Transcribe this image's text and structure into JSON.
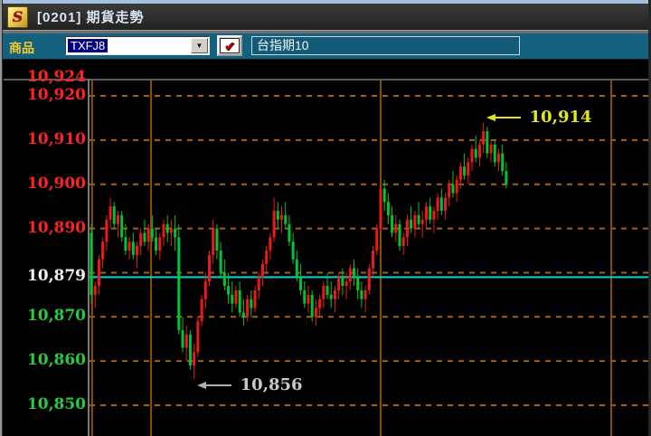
{
  "window": {
    "icon_glyph": "S",
    "title": "[0201] 期貨走勢"
  },
  "toolbar": {
    "product_label": "商品",
    "product_code": "TXFJ8",
    "dropdown_arrow": "▼",
    "checkmark": "✔",
    "product_name": "台指期10"
  },
  "colors": {
    "candle_up": "#f01818",
    "candle_down": "#00c430",
    "grid": "#a86212",
    "vline": "#8a5208",
    "plot_border": "#5d5d5d",
    "reference_line": "#00d8d8",
    "label_up": "#ff2222",
    "label_down": "#22cc44",
    "label_reference": "#f0f0f0",
    "annotation_high": "#e6e61c",
    "annotation_low": "#c9c9c9",
    "annotation_low_arrow": "#b0b0b0"
  },
  "chart_data": {
    "type": "candlestick",
    "title": "期貨走勢",
    "instrument": "TXFJ8",
    "instrument_name": "台指期10",
    "reference_price": 10879,
    "session_high": 10914,
    "session_low": 10856,
    "ylim": [
      10843,
      10924
    ],
    "grid": true,
    "y_ticks": [
      {
        "label": "10,924",
        "price": 10924,
        "role": "up"
      },
      {
        "label": "10,920",
        "price": 10920,
        "role": "up"
      },
      {
        "label": "10,910",
        "price": 10910,
        "role": "up"
      },
      {
        "label": "10,900",
        "price": 10900,
        "role": "up"
      },
      {
        "label": "10,890",
        "price": 10890,
        "role": "up"
      },
      {
        "label": "10,879",
        "price": 10879,
        "role": "reference"
      },
      {
        "label": "10,870",
        "price": 10870,
        "role": "down"
      },
      {
        "label": "10,860",
        "price": 10860,
        "role": "down"
      },
      {
        "label": "10,850",
        "price": 10850,
        "role": "down"
      }
    ],
    "h_gridline_prices": [
      10920,
      10910,
      10900,
      10890,
      10880,
      10870,
      10860,
      10850
    ],
    "v_gridline_minutes": [
      0.2,
      15.7,
      76.0,
      136.6
    ],
    "annotations": [
      {
        "label": "10,914",
        "price": 10914,
        "candle_index": 103,
        "position": "high"
      },
      {
        "label": "10,856",
        "price": 10856,
        "candle_index": 27,
        "position": "low"
      }
    ],
    "candles": [
      [
        10889,
        10891,
        10873,
        10875
      ],
      [
        10875,
        10878,
        10872,
        10877
      ],
      [
        10877,
        10884,
        10875,
        10883
      ],
      [
        10883,
        10888,
        10881,
        10887
      ],
      [
        10887,
        10893,
        10885,
        10892
      ],
      [
        10892,
        10897,
        10890,
        10895
      ],
      [
        10895,
        10896,
        10890,
        10891
      ],
      [
        10891,
        10894,
        10888,
        10893
      ],
      [
        10893,
        10894,
        10887,
        10888
      ],
      [
        10888,
        10891,
        10884,
        10885
      ],
      [
        10885,
        10888,
        10883,
        10887
      ],
      [
        10887,
        10889,
        10883,
        10884
      ],
      [
        10884,
        10887,
        10881,
        10886
      ],
      [
        10886,
        10890,
        10884,
        10889
      ],
      [
        10889,
        10892,
        10886,
        10887
      ],
      [
        10887,
        10891,
        10885,
        10890
      ],
      [
        10890,
        10893,
        10887,
        10888
      ],
      [
        10888,
        10890,
        10884,
        10885
      ],
      [
        10885,
        10889,
        10883,
        10888
      ],
      [
        10888,
        10892,
        10886,
        10891
      ],
      [
        10891,
        10893,
        10887,
        10889
      ],
      [
        10889,
        10892,
        10886,
        10890
      ],
      [
        10890,
        10893,
        10885,
        10888
      ],
      [
        10888,
        10891,
        10866,
        10867
      ],
      [
        10867,
        10870,
        10862,
        10863
      ],
      [
        10863,
        10868,
        10860,
        10866
      ],
      [
        10866,
        10867,
        10858,
        10859
      ],
      [
        10859,
        10864,
        10856,
        10862
      ],
      [
        10862,
        10870,
        10861,
        10869
      ],
      [
        10869,
        10875,
        10868,
        10874
      ],
      [
        10874,
        10880,
        10872,
        10878
      ],
      [
        10878,
        10885,
        10877,
        10884
      ],
      [
        10884,
        10892,
        10882,
        10890
      ],
      [
        10890,
        10891,
        10883,
        10885
      ],
      [
        10885,
        10887,
        10879,
        10880
      ],
      [
        10880,
        10883,
        10876,
        10877
      ],
      [
        10877,
        10880,
        10873,
        10875
      ],
      [
        10875,
        10878,
        10871,
        10873
      ],
      [
        10873,
        10877,
        10872,
        10876
      ],
      [
        10876,
        10878,
        10870,
        10871
      ],
      [
        10871,
        10874,
        10868,
        10870
      ],
      [
        10870,
        10875,
        10869,
        10874
      ],
      [
        10874,
        10876,
        10870,
        10872
      ],
      [
        10872,
        10877,
        10871,
        10876
      ],
      [
        10876,
        10880,
        10874,
        10879
      ],
      [
        10879,
        10883,
        10877,
        10882
      ],
      [
        10882,
        10886,
        10880,
        10885
      ],
      [
        10885,
        10889,
        10883,
        10888
      ],
      [
        10888,
        10897,
        10887,
        10894
      ],
      [
        10894,
        10896,
        10890,
        10892
      ],
      [
        10892,
        10895,
        10889,
        10893
      ],
      [
        10893,
        10896,
        10890,
        10891
      ],
      [
        10891,
        10893,
        10886,
        10887
      ],
      [
        10887,
        10889,
        10882,
        10883
      ],
      [
        10883,
        10885,
        10878,
        10879
      ],
      [
        10879,
        10882,
        10875,
        10876
      ],
      [
        10876,
        10878,
        10872,
        10873
      ],
      [
        10873,
        10877,
        10871,
        10875
      ],
      [
        10875,
        10876,
        10869,
        10870
      ],
      [
        10870,
        10874,
        10868,
        10872
      ],
      [
        10872,
        10875,
        10870,
        10874
      ],
      [
        10874,
        10878,
        10872,
        10877
      ],
      [
        10877,
        10880,
        10874,
        10875
      ],
      [
        10875,
        10878,
        10872,
        10874
      ],
      [
        10874,
        10877,
        10871,
        10876
      ],
      [
        10876,
        10880,
        10874,
        10879
      ],
      [
        10879,
        10881,
        10875,
        10877
      ],
      [
        10877,
        10880,
        10874,
        10878
      ],
      [
        10878,
        10882,
        10876,
        10881
      ],
      [
        10881,
        10883,
        10877,
        10879
      ],
      [
        10879,
        10881,
        10874,
        10876
      ],
      [
        10876,
        10878,
        10872,
        10874
      ],
      [
        10874,
        10877,
        10871,
        10876
      ],
      [
        10876,
        10882,
        10875,
        10881
      ],
      [
        10881,
        10886,
        10879,
        10885
      ],
      [
        10885,
        10891,
        10884,
        10890
      ],
      [
        10890,
        10900,
        10889,
        10899
      ],
      [
        10899,
        10901,
        10894,
        10896
      ],
      [
        10896,
        10898,
        10891,
        10893
      ],
      [
        10893,
        10895,
        10888,
        10889
      ],
      [
        10889,
        10893,
        10887,
        10891
      ],
      [
        10891,
        10892,
        10885,
        10886
      ],
      [
        10886,
        10889,
        10884,
        10888
      ],
      [
        10888,
        10893,
        10886,
        10892
      ],
      [
        10892,
        10895,
        10889,
        10890
      ],
      [
        10890,
        10894,
        10888,
        10893
      ],
      [
        10893,
        10896,
        10890,
        10891
      ],
      [
        10891,
        10894,
        10888,
        10892
      ],
      [
        10892,
        10896,
        10890,
        10895
      ],
      [
        10895,
        10897,
        10891,
        10892
      ],
      [
        10892,
        10895,
        10889,
        10894
      ],
      [
        10894,
        10898,
        10892,
        10897
      ],
      [
        10897,
        10899,
        10893,
        10894
      ],
      [
        10894,
        10898,
        10892,
        10897
      ],
      [
        10897,
        10901,
        10895,
        10900
      ],
      [
        10900,
        10903,
        10897,
        10898
      ],
      [
        10898,
        10902,
        10896,
        10901
      ],
      [
        10901,
        10905,
        10899,
        10904
      ],
      [
        10904,
        10907,
        10901,
        10902
      ],
      [
        10902,
        10906,
        10900,
        10905
      ],
      [
        10905,
        10909,
        10903,
        10908
      ],
      [
        10908,
        10911,
        10905,
        10906
      ],
      [
        10906,
        10910,
        10904,
        10909
      ],
      [
        10909,
        10914,
        10907,
        10912
      ],
      [
        10912,
        10913,
        10906,
        10907
      ],
      [
        10907,
        10910,
        10905,
        10909
      ],
      [
        10909,
        10910,
        10904,
        10905
      ],
      [
        10905,
        10908,
        10903,
        10907
      ],
      [
        10907,
        10909,
        10902,
        10903
      ],
      [
        10903,
        10905,
        10899,
        10900
      ]
    ]
  }
}
